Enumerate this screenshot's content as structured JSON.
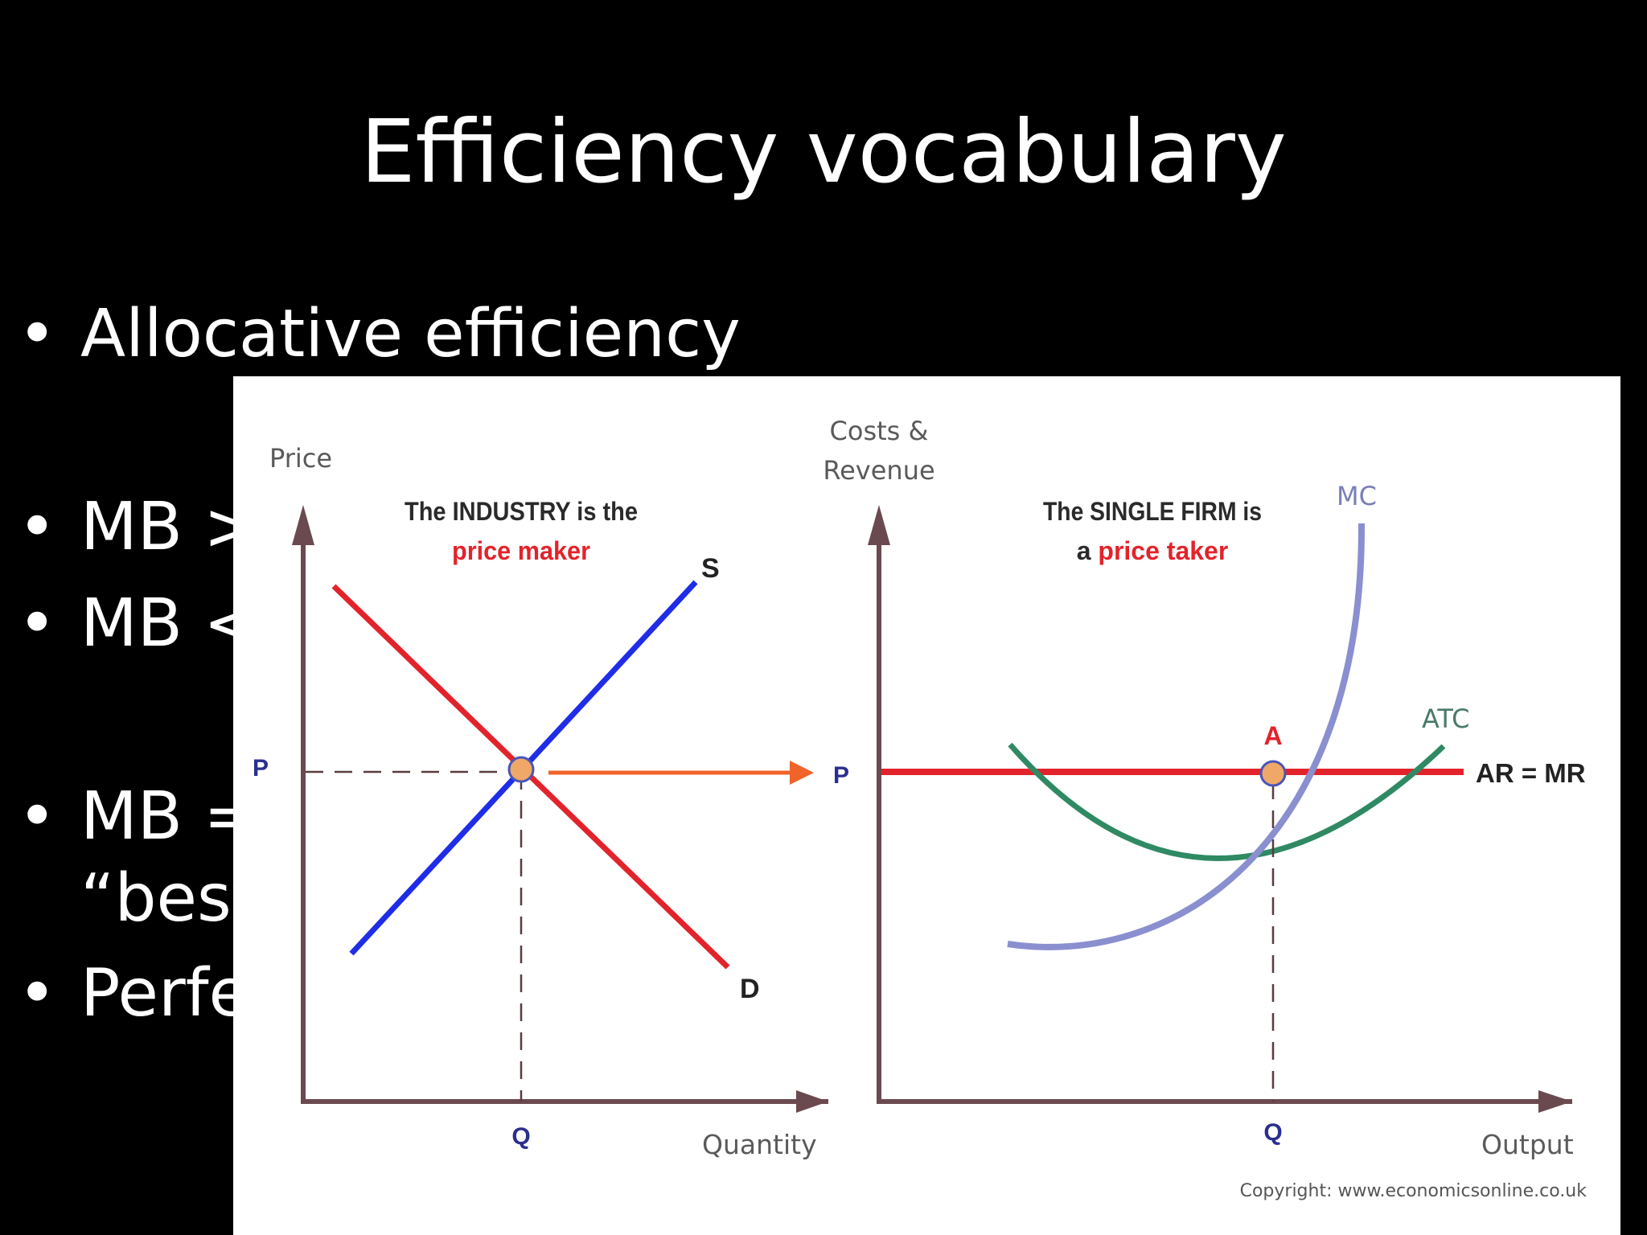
{
  "slide": {
    "title": "Efficiency vocabulary",
    "bullets": [
      {
        "text": "Allocative efficiency"
      },
      {
        "text": "MB >"
      },
      {
        "text": "MB <"
      },
      {
        "text": "MB ="
      },
      {
        "text": "Perfe"
      }
    ],
    "continuation": "“best"
  },
  "diagram": {
    "left_graph": {
      "y_axis_label": "Price",
      "x_axis_label": "Quantity",
      "heading_line1": "The INDUSTRY is the",
      "heading_line2": "price maker",
      "supply_label": "S",
      "demand_label": "D",
      "price_label": "P",
      "quantity_label": "Q"
    },
    "right_graph": {
      "y_axis_label_line1": "Costs &",
      "y_axis_label_line2": "Revenue",
      "x_axis_label": "Output",
      "heading_line1_prefix": "The SINGLE FIRM is",
      "heading_line2_prefix": "a ",
      "heading_line2_emph": "price taker",
      "mc_label": "MC",
      "atc_label": "ATC",
      "ar_mr_label": "AR = MR",
      "point_label": "A",
      "price_label": "P",
      "quantity_label": "Q"
    },
    "copyright": "Copyright: www.economicsonline.co.uk",
    "colors": {
      "supply": "#1f2de8",
      "demand": "#e3232b",
      "mc": "#8a8fd0",
      "atc": "#2f8a64",
      "ar_mr": "#e3232b",
      "axis": "#6b4a4f",
      "arrow": "#f0632a",
      "equilibrium_point": "#f0a868",
      "emphasis_text": "#e3232b",
      "axis_value_text": "#2a2f8f"
    }
  }
}
